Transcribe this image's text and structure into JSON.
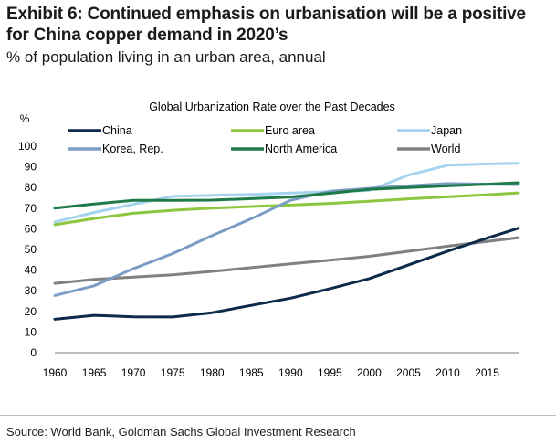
{
  "header": {
    "title": "Exhibit 6: Continued emphasis on urbanisation will be a positive for China copper demand in 2020’s",
    "subtitle": "% of population living in an urban area, annual"
  },
  "footer": {
    "source": "Source: World Bank, Goldman Sachs Global Investment Research"
  },
  "chart_data": {
    "type": "line",
    "title": "Global Urbanization Rate over the Past Decades",
    "ylabel": "%",
    "xlabel": "",
    "xlim": [
      1960,
      2019
    ],
    "ylim": [
      0,
      100
    ],
    "x_ticks": [
      1960,
      1965,
      1970,
      1975,
      1980,
      1985,
      1990,
      1995,
      2000,
      2005,
      2010,
      2015
    ],
    "y_ticks": [
      0,
      10,
      20,
      30,
      40,
      50,
      60,
      70,
      80,
      90,
      100
    ],
    "grid": false,
    "legend_position": "top",
    "x": [
      1960,
      1965,
      1970,
      1975,
      1980,
      1985,
      1990,
      1995,
      2000,
      2005,
      2010,
      2015,
      2019
    ],
    "series": [
      {
        "name": "China",
        "color": "#0d2a4a",
        "values": [
          16.2,
          18.1,
          17.4,
          17.3,
          19.4,
          22.9,
          26.4,
          31.0,
          35.9,
          42.5,
          49.2,
          55.5,
          60.3
        ]
      },
      {
        "name": "Euro area",
        "color": "#8dc63f",
        "values": [
          62.0,
          65.0,
          67.5,
          69.0,
          70.0,
          70.8,
          71.5,
          72.3,
          73.3,
          74.5,
          75.5,
          76.5,
          77.4
        ]
      },
      {
        "name": "Japan",
        "color": "#a6d3ee",
        "values": [
          63.3,
          67.9,
          71.9,
          75.7,
          76.2,
          76.7,
          77.3,
          78.0,
          78.6,
          86.0,
          90.8,
          91.4,
          91.7
        ]
      },
      {
        "name": "Korea, Rep.",
        "color": "#7b9cc4",
        "values": [
          27.7,
          32.4,
          40.7,
          48.0,
          56.7,
          64.9,
          73.8,
          78.2,
          79.6,
          80.8,
          81.9,
          81.6,
          81.4
        ]
      },
      {
        "name": "North America",
        "color": "#1f7a4a",
        "values": [
          70.0,
          72.0,
          73.8,
          73.8,
          73.9,
          74.6,
          75.4,
          77.2,
          79.1,
          80.0,
          80.8,
          81.6,
          82.3
        ]
      },
      {
        "name": "World",
        "color": "#808080",
        "values": [
          33.6,
          35.5,
          36.6,
          37.7,
          39.4,
          41.2,
          43.0,
          44.8,
          46.7,
          49.1,
          51.6,
          53.9,
          55.7
        ]
      }
    ]
  }
}
